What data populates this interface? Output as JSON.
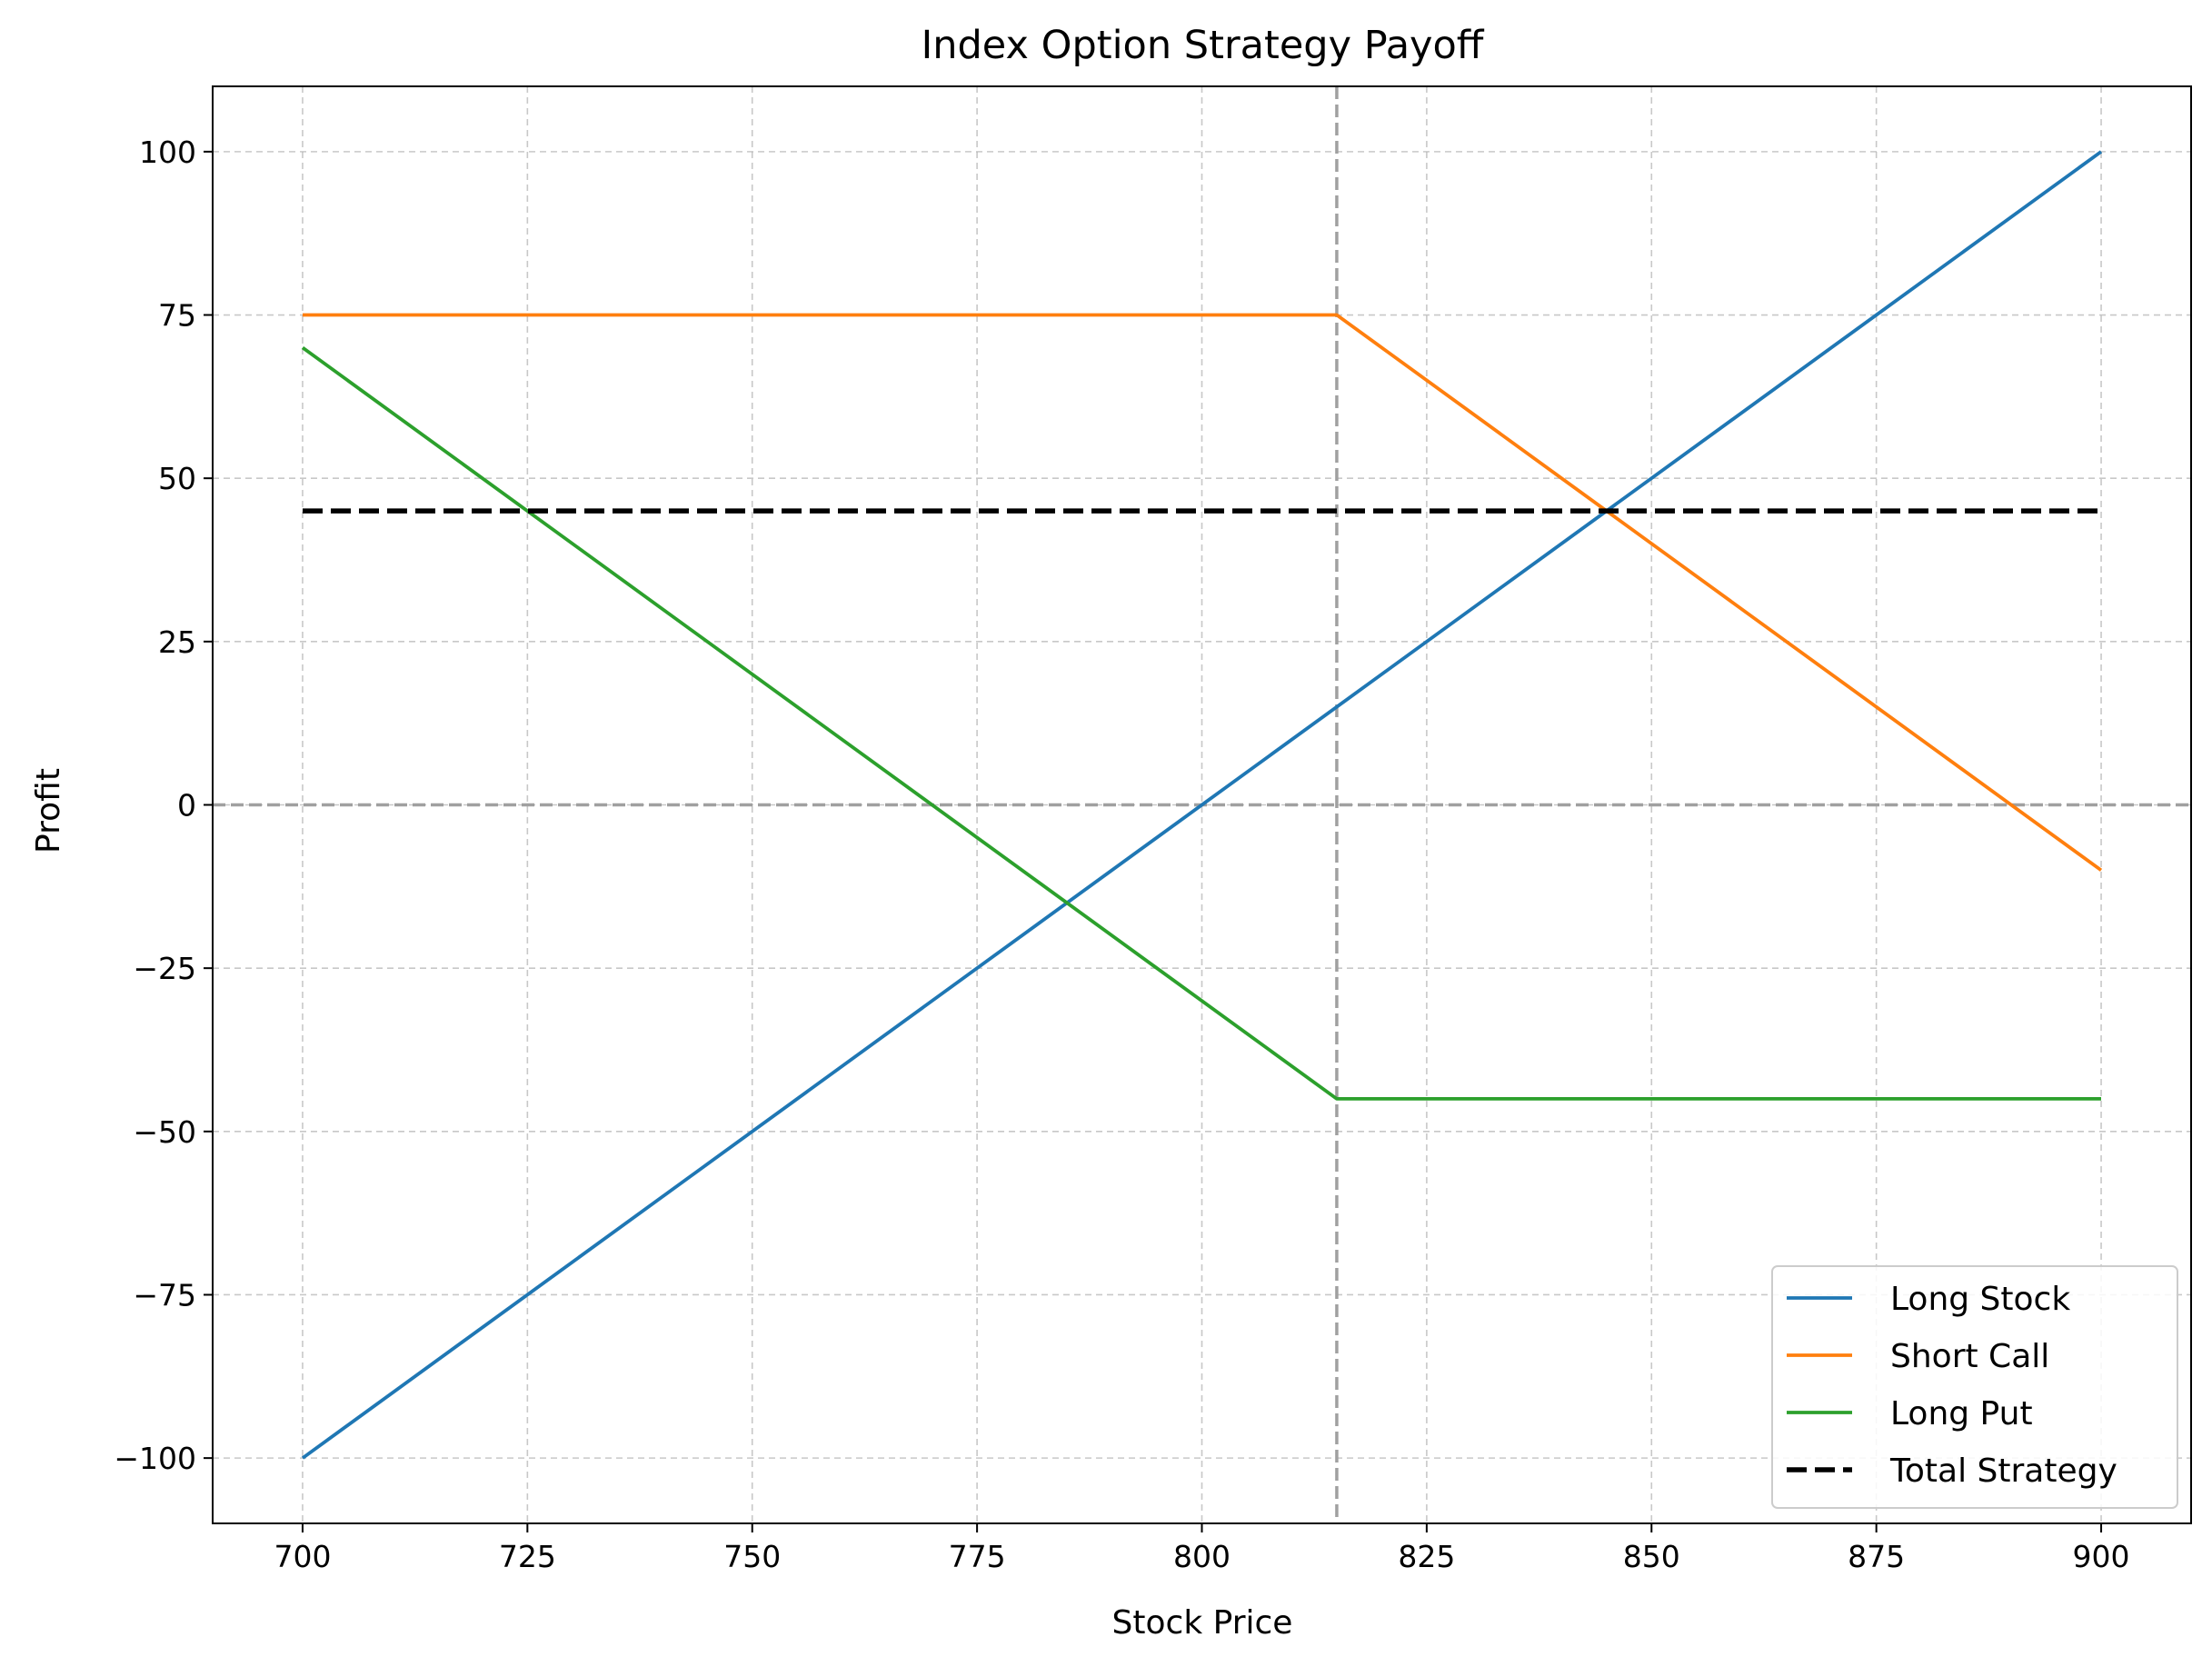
{
  "chart_data": {
    "type": "line",
    "title": "Index Option Strategy Payoff",
    "xlabel": "Stock Price",
    "ylabel": "Profit",
    "xlim": [
      690,
      910
    ],
    "ylim": [
      -110,
      110
    ],
    "xticks": [
      700,
      725,
      750,
      775,
      800,
      825,
      850,
      875,
      900
    ],
    "yticks": [
      -100,
      -75,
      -50,
      -25,
      0,
      25,
      50,
      75,
      100
    ],
    "grid": true,
    "legend_position": "lower-right",
    "reference_lines": [
      {
        "orientation": "horizontal",
        "value": 0,
        "color": "#a0a0a0",
        "style": "dashed"
      },
      {
        "orientation": "vertical",
        "value": 815,
        "color": "#a0a0a0",
        "style": "dashed"
      }
    ],
    "series": [
      {
        "name": "Long Stock",
        "color": "#1f77b4",
        "style": "solid",
        "x": [
          700,
          900
        ],
        "y": [
          -100,
          100
        ]
      },
      {
        "name": "Short Call",
        "color": "#ff7f0e",
        "style": "solid",
        "x": [
          700,
          815,
          900
        ],
        "y": [
          75,
          75,
          -10
        ]
      },
      {
        "name": "Long Put",
        "color": "#2ca02c",
        "style": "solid",
        "x": [
          700,
          815,
          900
        ],
        "y": [
          70,
          -45,
          -45
        ]
      },
      {
        "name": "Total Strategy",
        "color": "#000000",
        "style": "dashed",
        "x": [
          700,
          900
        ],
        "y": [
          45,
          45
        ]
      }
    ]
  }
}
